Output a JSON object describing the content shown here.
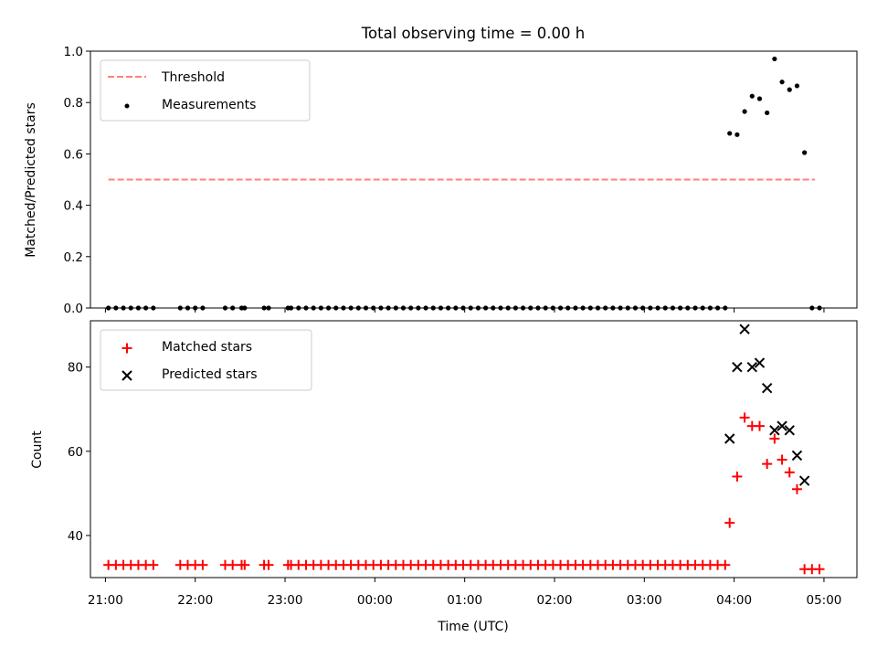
{
  "chart_data": [
    {
      "type": "scatter",
      "title": "Total observing time = 0.00 h",
      "ylabel": "Matched/Predicted stars",
      "xlabel": "",
      "ylim": [
        0,
        1.0
      ],
      "xlim": [
        "20:50",
        "05:22"
      ],
      "yticks": [
        0.0,
        0.2,
        0.4,
        0.6,
        0.8,
        1.0
      ],
      "ytick_labels": [
        "0.0",
        "0.2",
        "0.4",
        "0.6",
        "0.8",
        "1.0"
      ],
      "legend_position": "top-left",
      "series": [
        {
          "name": "Threshold",
          "kind": "dashed-line",
          "color": "#ff7f7f",
          "x": [
            "21:02",
            "04:54"
          ],
          "y": [
            0.5,
            0.5
          ]
        },
        {
          "name": "Measurements",
          "kind": "points",
          "color": "#000000",
          "points": [
            {
              "x": "21:02",
              "y": 0
            },
            {
              "x": "21:07",
              "y": 0
            },
            {
              "x": "21:12",
              "y": 0
            },
            {
              "x": "21:17",
              "y": 0
            },
            {
              "x": "21:22",
              "y": 0
            },
            {
              "x": "21:27",
              "y": 0
            },
            {
              "x": "21:32",
              "y": 0
            },
            {
              "x": "21:50",
              "y": 0
            },
            {
              "x": "21:55",
              "y": 0
            },
            {
              "x": "22:00",
              "y": 0
            },
            {
              "x": "22:05",
              "y": 0
            },
            {
              "x": "22:20",
              "y": 0
            },
            {
              "x": "22:25",
              "y": 0
            },
            {
              "x": "22:31",
              "y": 0
            },
            {
              "x": "22:33",
              "y": 0
            },
            {
              "x": "22:46",
              "y": 0
            },
            {
              "x": "22:49",
              "y": 0
            },
            {
              "x": "23:02",
              "y": 0
            },
            {
              "x": "23:04",
              "y": 0
            },
            {
              "x": "23:09",
              "y": 0
            },
            {
              "x": "23:14",
              "y": 0
            },
            {
              "x": "23:19",
              "y": 0
            },
            {
              "x": "23:24",
              "y": 0
            },
            {
              "x": "23:29",
              "y": 0
            },
            {
              "x": "23:34",
              "y": 0
            },
            {
              "x": "23:39",
              "y": 0
            },
            {
              "x": "23:44",
              "y": 0
            },
            {
              "x": "23:49",
              "y": 0
            },
            {
              "x": "23:54",
              "y": 0
            },
            {
              "x": "23:59",
              "y": 0
            },
            {
              "x": "00:04",
              "y": 0
            },
            {
              "x": "00:09",
              "y": 0
            },
            {
              "x": "00:14",
              "y": 0
            },
            {
              "x": "00:19",
              "y": 0
            },
            {
              "x": "00:24",
              "y": 0
            },
            {
              "x": "00:29",
              "y": 0
            },
            {
              "x": "00:34",
              "y": 0
            },
            {
              "x": "00:39",
              "y": 0
            },
            {
              "x": "00:44",
              "y": 0
            },
            {
              "x": "00:49",
              "y": 0
            },
            {
              "x": "00:54",
              "y": 0
            },
            {
              "x": "00:59",
              "y": 0
            },
            {
              "x": "01:04",
              "y": 0
            },
            {
              "x": "01:09",
              "y": 0
            },
            {
              "x": "01:14",
              "y": 0
            },
            {
              "x": "01:19",
              "y": 0
            },
            {
              "x": "01:24",
              "y": 0
            },
            {
              "x": "01:29",
              "y": 0
            },
            {
              "x": "01:34",
              "y": 0
            },
            {
              "x": "01:39",
              "y": 0
            },
            {
              "x": "01:44",
              "y": 0
            },
            {
              "x": "01:49",
              "y": 0
            },
            {
              "x": "01:54",
              "y": 0
            },
            {
              "x": "01:59",
              "y": 0
            },
            {
              "x": "02:04",
              "y": 0
            },
            {
              "x": "02:09",
              "y": 0
            },
            {
              "x": "02:14",
              "y": 0
            },
            {
              "x": "02:19",
              "y": 0
            },
            {
              "x": "02:24",
              "y": 0
            },
            {
              "x": "02:29",
              "y": 0
            },
            {
              "x": "02:34",
              "y": 0
            },
            {
              "x": "02:39",
              "y": 0
            },
            {
              "x": "02:44",
              "y": 0
            },
            {
              "x": "02:49",
              "y": 0
            },
            {
              "x": "02:54",
              "y": 0
            },
            {
              "x": "02:59",
              "y": 0
            },
            {
              "x": "03:04",
              "y": 0
            },
            {
              "x": "03:09",
              "y": 0
            },
            {
              "x": "03:14",
              "y": 0
            },
            {
              "x": "03:19",
              "y": 0
            },
            {
              "x": "03:24",
              "y": 0
            },
            {
              "x": "03:29",
              "y": 0
            },
            {
              "x": "03:34",
              "y": 0
            },
            {
              "x": "03:39",
              "y": 0
            },
            {
              "x": "03:44",
              "y": 0
            },
            {
              "x": "03:49",
              "y": 0
            },
            {
              "x": "03:54",
              "y": 0
            },
            {
              "x": "03:57",
              "y": 0.68
            },
            {
              "x": "04:02",
              "y": 0.675
            },
            {
              "x": "04:07",
              "y": 0.765
            },
            {
              "x": "04:12",
              "y": 0.825
            },
            {
              "x": "04:17",
              "y": 0.815
            },
            {
              "x": "04:22",
              "y": 0.76
            },
            {
              "x": "04:27",
              "y": 0.97
            },
            {
              "x": "04:32",
              "y": 0.88
            },
            {
              "x": "04:37",
              "y": 0.85
            },
            {
              "x": "04:42",
              "y": 0.865
            },
            {
              "x": "04:47",
              "y": 0.605
            },
            {
              "x": "04:52",
              "y": 0
            },
            {
              "x": "04:57",
              "y": 0
            }
          ]
        }
      ]
    },
    {
      "type": "scatter",
      "title": "",
      "ylabel": "Count",
      "xlabel": "Time (UTC)",
      "ylim": [
        30,
        91
      ],
      "xlim": [
        "20:50",
        "05:22"
      ],
      "yticks": [
        40,
        60,
        80
      ],
      "ytick_labels": [
        "40",
        "60",
        "80"
      ],
      "xticks": [
        "21:00",
        "22:00",
        "23:00",
        "00:00",
        "01:00",
        "02:00",
        "03:00",
        "04:00",
        "05:00"
      ],
      "legend_position": "top-left",
      "series": [
        {
          "name": "Matched stars",
          "kind": "plus",
          "color": "#ff0000",
          "points": [
            {
              "x": "21:02",
              "y": 33
            },
            {
              "x": "21:07",
              "y": 33
            },
            {
              "x": "21:12",
              "y": 33
            },
            {
              "x": "21:17",
              "y": 33
            },
            {
              "x": "21:22",
              "y": 33
            },
            {
              "x": "21:27",
              "y": 33
            },
            {
              "x": "21:32",
              "y": 33
            },
            {
              "x": "21:50",
              "y": 33
            },
            {
              "x": "21:55",
              "y": 33
            },
            {
              "x": "22:00",
              "y": 33
            },
            {
              "x": "22:05",
              "y": 33
            },
            {
              "x": "22:20",
              "y": 33
            },
            {
              "x": "22:25",
              "y": 33
            },
            {
              "x": "22:31",
              "y": 33
            },
            {
              "x": "22:33",
              "y": 33
            },
            {
              "x": "22:46",
              "y": 33
            },
            {
              "x": "22:49",
              "y": 33
            },
            {
              "x": "23:02",
              "y": 33
            },
            {
              "x": "23:04",
              "y": 33
            },
            {
              "x": "23:09",
              "y": 33
            },
            {
              "x": "23:14",
              "y": 33
            },
            {
              "x": "23:19",
              "y": 33
            },
            {
              "x": "23:24",
              "y": 33
            },
            {
              "x": "23:29",
              "y": 33
            },
            {
              "x": "23:34",
              "y": 33
            },
            {
              "x": "23:39",
              "y": 33
            },
            {
              "x": "23:44",
              "y": 33
            },
            {
              "x": "23:49",
              "y": 33
            },
            {
              "x": "23:54",
              "y": 33
            },
            {
              "x": "23:59",
              "y": 33
            },
            {
              "x": "00:04",
              "y": 33
            },
            {
              "x": "00:09",
              "y": 33
            },
            {
              "x": "00:14",
              "y": 33
            },
            {
              "x": "00:19",
              "y": 33
            },
            {
              "x": "00:24",
              "y": 33
            },
            {
              "x": "00:29",
              "y": 33
            },
            {
              "x": "00:34",
              "y": 33
            },
            {
              "x": "00:39",
              "y": 33
            },
            {
              "x": "00:44",
              "y": 33
            },
            {
              "x": "00:49",
              "y": 33
            },
            {
              "x": "00:54",
              "y": 33
            },
            {
              "x": "00:59",
              "y": 33
            },
            {
              "x": "01:04",
              "y": 33
            },
            {
              "x": "01:09",
              "y": 33
            },
            {
              "x": "01:14",
              "y": 33
            },
            {
              "x": "01:19",
              "y": 33
            },
            {
              "x": "01:24",
              "y": 33
            },
            {
              "x": "01:29",
              "y": 33
            },
            {
              "x": "01:34",
              "y": 33
            },
            {
              "x": "01:39",
              "y": 33
            },
            {
              "x": "01:44",
              "y": 33
            },
            {
              "x": "01:49",
              "y": 33
            },
            {
              "x": "01:54",
              "y": 33
            },
            {
              "x": "01:59",
              "y": 33
            },
            {
              "x": "02:04",
              "y": 33
            },
            {
              "x": "02:09",
              "y": 33
            },
            {
              "x": "02:14",
              "y": 33
            },
            {
              "x": "02:19",
              "y": 33
            },
            {
              "x": "02:24",
              "y": 33
            },
            {
              "x": "02:29",
              "y": 33
            },
            {
              "x": "02:34",
              "y": 33
            },
            {
              "x": "02:39",
              "y": 33
            },
            {
              "x": "02:44",
              "y": 33
            },
            {
              "x": "02:49",
              "y": 33
            },
            {
              "x": "02:54",
              "y": 33
            },
            {
              "x": "02:59",
              "y": 33
            },
            {
              "x": "03:04",
              "y": 33
            },
            {
              "x": "03:09",
              "y": 33
            },
            {
              "x": "03:14",
              "y": 33
            },
            {
              "x": "03:19",
              "y": 33
            },
            {
              "x": "03:24",
              "y": 33
            },
            {
              "x": "03:29",
              "y": 33
            },
            {
              "x": "03:34",
              "y": 33
            },
            {
              "x": "03:39",
              "y": 33
            },
            {
              "x": "03:44",
              "y": 33
            },
            {
              "x": "03:49",
              "y": 33
            },
            {
              "x": "03:54",
              "y": 33
            },
            {
              "x": "03:57",
              "y": 43
            },
            {
              "x": "04:02",
              "y": 54
            },
            {
              "x": "04:07",
              "y": 68
            },
            {
              "x": "04:12",
              "y": 66
            },
            {
              "x": "04:17",
              "y": 66
            },
            {
              "x": "04:22",
              "y": 57
            },
            {
              "x": "04:27",
              "y": 63
            },
            {
              "x": "04:32",
              "y": 58
            },
            {
              "x": "04:37",
              "y": 55
            },
            {
              "x": "04:42",
              "y": 51
            },
            {
              "x": "04:47",
              "y": 32
            },
            {
              "x": "04:52",
              "y": 32
            },
            {
              "x": "04:57",
              "y": 32
            }
          ]
        },
        {
          "name": "Predicted stars",
          "kind": "x",
          "color": "#000000",
          "points": [
            {
              "x": "03:57",
              "y": 63
            },
            {
              "x": "04:02",
              "y": 80
            },
            {
              "x": "04:07",
              "y": 89
            },
            {
              "x": "04:12",
              "y": 80
            },
            {
              "x": "04:17",
              "y": 81
            },
            {
              "x": "04:22",
              "y": 75
            },
            {
              "x": "04:27",
              "y": 65
            },
            {
              "x": "04:32",
              "y": 66
            },
            {
              "x": "04:37",
              "y": 65
            },
            {
              "x": "04:42",
              "y": 59
            },
            {
              "x": "04:47",
              "y": 53
            }
          ]
        }
      ]
    }
  ]
}
